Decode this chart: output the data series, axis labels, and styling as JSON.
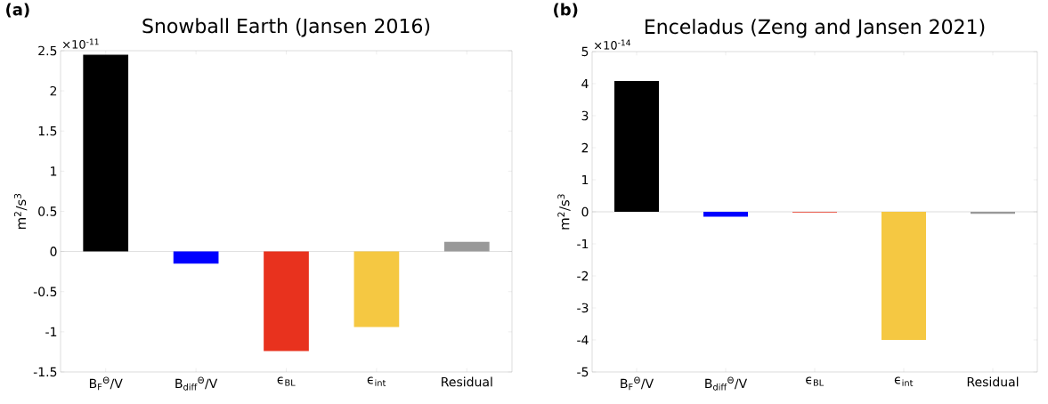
{
  "chart_data": [
    {
      "type": "bar",
      "title": "Snowball Earth (Jansen 2016)",
      "ylabel": "m$^{2}$/s$^{3}$",
      "categories": [
        "B$_{F}$$^{Θ}$/V",
        "B$_{diff}$$^{Θ}$/V",
        "ϵ$_{BL}$",
        "ϵ$_{int}$",
        "Residual"
      ],
      "values": [
        2.45,
        -0.15,
        -1.24,
        -0.94,
        0.12
      ],
      "colors": [
        "#000000",
        "#0000ff",
        "#e8321e",
        "#f5c842",
        "#999999"
      ],
      "ylim": [
        -1.5,
        2.5
      ],
      "yticks": [
        -1.5,
        -1,
        -0.5,
        0,
        0.5,
        1,
        1.5,
        2,
        2.5
      ],
      "annotations": [
        "(a)",
        "×10$^{-11}$"
      ]
    },
    {
      "type": "bar",
      "title": "Enceladus (Zeng and Jansen 2021)",
      "ylabel": "m$^{2}$/s$^{3}$",
      "categories": [
        "B$_{F}$$^{Θ}$/V",
        "B$_{diff}$$^{Θ}$/V",
        "ϵ$_{BL}$",
        "ϵ$_{int}$",
        "Residual"
      ],
      "values": [
        4.08,
        -0.15,
        -0.02,
        -4.0,
        -0.06
      ],
      "colors": [
        "#000000",
        "#0000ff",
        "#e8321e",
        "#f5c842",
        "#999999"
      ],
      "ylim": [
        -5,
        5
      ],
      "yticks": [
        -5,
        -4,
        -3,
        -2,
        -1,
        0,
        1,
        2,
        3,
        4,
        5
      ],
      "annotations": [
        "(b)",
        "×10$^{-14}$"
      ]
    }
  ]
}
